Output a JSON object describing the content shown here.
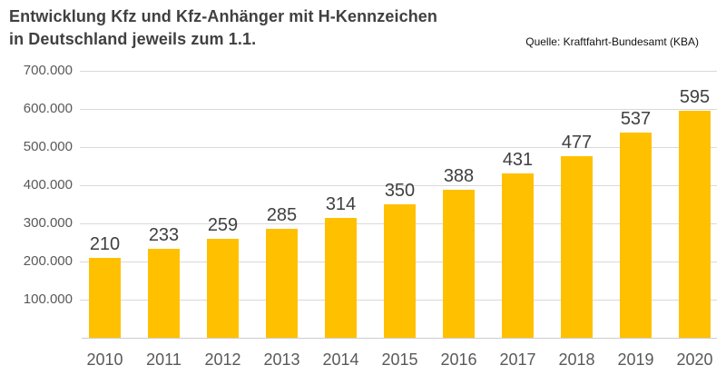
{
  "title": {
    "line1": "Entwicklung Kfz und Kfz-Anhänger mit H-Kennzeichen",
    "line2": "in Deutschland jeweils zum 1.1."
  },
  "source": "Quelle: Kraftfahrt-Bundesamt (KBA)",
  "colors": {
    "bar": "#FFC000",
    "grid": "#D9D9D9",
    "axis_line": "#CDCDCD",
    "title_text": "#404040",
    "axis_text": "#595959",
    "value_label_text": "#404040",
    "source_text": "#111111",
    "background": "#FFFFFF"
  },
  "chart_data": {
    "type": "bar",
    "title": "Entwicklung Kfz und Kfz-Anhänger mit H-Kennzeichen in Deutschland jeweils zum 1.1.",
    "source": "Quelle: Kraftfahrt-Bundesamt (KBA)",
    "categories": [
      "2010",
      "2011",
      "2012",
      "2013",
      "2014",
      "2015",
      "2016",
      "2017",
      "2018",
      "2019",
      "2020"
    ],
    "values": [
      210,
      233,
      259,
      285,
      314,
      350,
      388,
      431,
      477,
      537,
      595
    ],
    "values_note": "data labels shown in thousands; bars scale against y-axis in absolute units",
    "xlabel": "",
    "ylabel": "",
    "ylim": [
      0,
      700000
    ],
    "y_ticks": [
      "100.000",
      "200.000",
      "300.000",
      "400.000",
      "500.000",
      "600.000",
      "700.000"
    ],
    "grid": true,
    "legend": false,
    "bar_color": "#FFC000"
  }
}
